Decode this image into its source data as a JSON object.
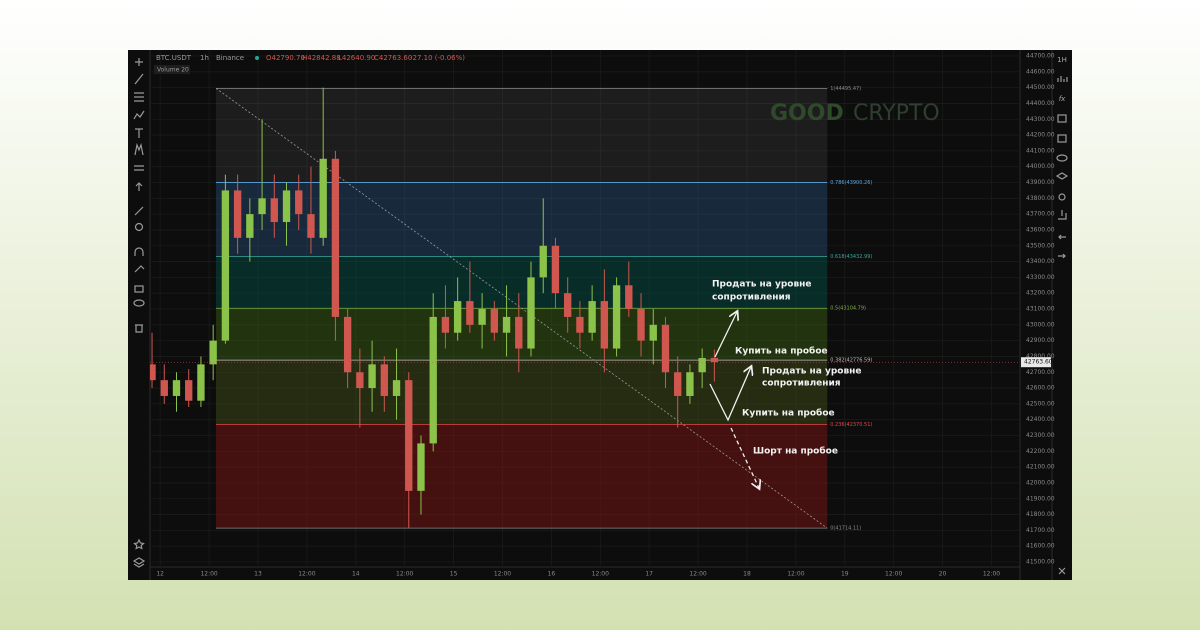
{
  "chart_data": {
    "type": "candlestick",
    "symbol": "BTC.USDT",
    "interval": "1h",
    "exchange": "Binance",
    "ohlc_legend": [
      "O42790.70",
      "H42842.88",
      "L42640.90",
      "C42763.60",
      "-27.10 (-0.06%)"
    ],
    "indicator": "Volume 20",
    "watermark": [
      "GOOD",
      "CRYPTO"
    ],
    "toolbar_right": [
      "1H",
      "fx"
    ],
    "up_color": "#8bc34a",
    "down_color": "#d0574f",
    "grid": true,
    "xlim": [
      -2.5,
      211
    ],
    "ylim": [
      41500,
      44700
    ],
    "xticks": [
      {
        "value": 0,
        "label": "12"
      },
      {
        "value": 12,
        "label": "12:00"
      },
      {
        "value": 24,
        "label": "13"
      },
      {
        "value": 36,
        "label": "12:00"
      },
      {
        "value": 48,
        "label": "14"
      },
      {
        "value": 60,
        "label": "12:00"
      },
      {
        "value": 72,
        "label": "15"
      },
      {
        "value": 84,
        "label": "12:00"
      },
      {
        "value": 96,
        "label": "16"
      },
      {
        "value": 108,
        "label": "12:00"
      },
      {
        "value": 120,
        "label": "17"
      },
      {
        "value": 132,
        "label": "12:00"
      },
      {
        "value": 144,
        "label": "18"
      },
      {
        "value": 156,
        "label": "12:00"
      },
      {
        "value": 168,
        "label": "19"
      },
      {
        "value": 180,
        "label": "12:00"
      },
      {
        "value": 192,
        "label": "20"
      },
      {
        "value": 204,
        "label": "12:00"
      }
    ],
    "yticks": [
      {
        "value": 41500,
        "label": "41500.00"
      },
      {
        "value": 41600,
        "label": "41600.00"
      },
      {
        "value": 41700,
        "label": "41700.00"
      },
      {
        "value": 41800,
        "label": "41800.00"
      },
      {
        "value": 41900,
        "label": "41900.00"
      },
      {
        "value": 42000,
        "label": "42000.00"
      },
      {
        "value": 42100,
        "label": "42100.00"
      },
      {
        "value": 42200,
        "label": "42200.00"
      },
      {
        "value": 42300,
        "label": "42300.00"
      },
      {
        "value": 42400,
        "label": "42400.00"
      },
      {
        "value": 42500,
        "label": "42500.00"
      },
      {
        "value": 42600,
        "label": "42600.00"
      },
      {
        "value": 42700,
        "label": "42700.00"
      },
      {
        "value": 42800,
        "label": "42800.00"
      },
      {
        "value": 42900,
        "label": "42900.00"
      },
      {
        "value": 43000,
        "label": "43000.00"
      },
      {
        "value": 43100,
        "label": "43100.00"
      },
      {
        "value": 43200,
        "label": "43200.00"
      },
      {
        "value": 43300,
        "label": "43300.00"
      },
      {
        "value": 43400,
        "label": "43400.00"
      },
      {
        "value": 43500,
        "label": "43500.00"
      },
      {
        "value": 43600,
        "label": "43600.00"
      },
      {
        "value": 43700,
        "label": "43700.00"
      },
      {
        "value": 43800,
        "label": "43800.00"
      },
      {
        "value": 43900,
        "label": "43900.00"
      },
      {
        "value": 44000,
        "label": "44000.00"
      },
      {
        "value": 44100,
        "label": "44100.00"
      },
      {
        "value": 44200,
        "label": "44200.00"
      },
      {
        "value": 44300,
        "label": "44300.00"
      },
      {
        "value": 44400,
        "label": "44400.00"
      },
      {
        "value": 44500,
        "label": "44500.00"
      },
      {
        "value": 44600,
        "label": "44600.00"
      },
      {
        "value": 44700,
        "label": "44700.00"
      }
    ],
    "x": [
      -2,
      1,
      4,
      7,
      10,
      13,
      16,
      19,
      22,
      25,
      28,
      31,
      34,
      37,
      40,
      43,
      46,
      49,
      52,
      55,
      58,
      61,
      64,
      67,
      70,
      73,
      76,
      79,
      82,
      85,
      88,
      91,
      94,
      97,
      100,
      103,
      106,
      109,
      112,
      115,
      118,
      121,
      124,
      127,
      130,
      133,
      136
    ],
    "open": [
      42750,
      42650,
      42550,
      42650,
      42520,
      42750,
      42900,
      43850,
      43550,
      43700,
      43800,
      43650,
      43850,
      43700,
      43550,
      44050,
      43050,
      42700,
      42600,
      42750,
      42550,
      42650,
      41950,
      42250,
      43050,
      42950,
      43150,
      43000,
      43100,
      42950,
      43050,
      42850,
      43300,
      43500,
      43200,
      43050,
      42950,
      43150,
      42850,
      43250,
      43100,
      42900,
      43000,
      42700,
      42550,
      42700,
      42790.7
    ],
    "high": [
      42950,
      42750,
      42700,
      42720,
      42800,
      43000,
      43950,
      43950,
      43800,
      44300,
      43950,
      43900,
      43950,
      44000,
      44500,
      44100,
      43100,
      42850,
      42900,
      42800,
      42850,
      42700,
      42300,
      43200,
      43250,
      43300,
      43400,
      43200,
      43150,
      43250,
      43200,
      43400,
      43800,
      43550,
      43300,
      43150,
      43250,
      43350,
      43300,
      43400,
      43200,
      43100,
      43050,
      42800,
      42750,
      42850,
      42842.88
    ],
    "low": [
      42600,
      42500,
      42450,
      42480,
      42480,
      42650,
      42880,
      43450,
      43400,
      43600,
      43550,
      43500,
      43600,
      43450,
      43500,
      42900,
      42600,
      42350,
      42450,
      42450,
      42400,
      41714,
      41800,
      42200,
      42850,
      42900,
      42950,
      42850,
      42900,
      42800,
      42700,
      42800,
      43200,
      43100,
      42950,
      42850,
      42900,
      42700,
      42800,
      43050,
      42800,
      42750,
      42600,
      42350,
      42500,
      42600,
      42640.9
    ],
    "close": [
      42650,
      42550,
      42650,
      42520,
      42750,
      42900,
      43850,
      43550,
      43700,
      43800,
      43650,
      43850,
      43700,
      43550,
      44050,
      43050,
      42700,
      42600,
      42750,
      42550,
      42650,
      41950,
      42250,
      43050,
      42950,
      43150,
      43000,
      43100,
      42950,
      43050,
      42850,
      43300,
      43500,
      43200,
      43050,
      42950,
      43150,
      42850,
      43250,
      43100,
      42900,
      43000,
      42700,
      42550,
      42700,
      42790,
      42763.6
    ],
    "last_price": {
      "value": 42763.6,
      "label": "42763.60"
    },
    "fib_x": [
      13.7,
      163.7
    ],
    "fib_levels": [
      {
        "value": 44495.47,
        "label": "1(44495.47)",
        "color": "#8a8a8a"
      },
      {
        "value": 43900.26,
        "label": "0.786(43900.26)",
        "color": "#5fa8e0"
      },
      {
        "value": 43432.99,
        "label": "0.618(43432.99)",
        "color": "#3aa6a0"
      },
      {
        "value": 43104.79,
        "label": "0.5(43104.79)",
        "color": "#7cb342"
      },
      {
        "value": 42776.59,
        "label": "0.382(42776.59)",
        "color": "#bdbdbd"
      },
      {
        "value": 42370.51,
        "label": "0.236(42370.51)",
        "color": "#e04a4a"
      },
      {
        "value": 41714.11,
        "label": "0(41714.11)",
        "color": "#8a8a8a"
      }
    ],
    "fib_zone_colors": [
      "rgba(120,120,120,0.16)",
      "rgba(45,95,150,0.35)",
      "rgba(0,95,85,0.38)",
      "rgba(65,105,20,0.42)",
      "rgba(75,95,25,0.38)",
      "rgba(125,20,20,0.5)"
    ],
    "annotations": [
      [
        "Продать на уровне",
        "сопротивления"
      ],
      [
        "Купить на пробое"
      ],
      [
        "Продать на уровне",
        "сопротивления"
      ],
      [
        "Купить на пробое"
      ],
      [
        "Шорт на пробое"
      ]
    ]
  }
}
